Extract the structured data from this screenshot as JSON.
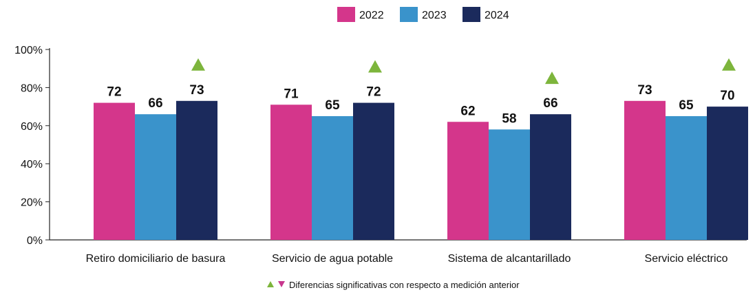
{
  "chart_data": {
    "type": "bar",
    "categories": [
      "Retiro domiciliario de basura",
      "Servicio de agua potable",
      "Sistema de alcantarillado",
      "Servicio eléctrico"
    ],
    "series": [
      {
        "name": "2022",
        "color": "#D4368B",
        "values": [
          72,
          71,
          62,
          73
        ]
      },
      {
        "name": "2023",
        "color": "#3A93CB",
        "values": [
          66,
          65,
          58,
          65
        ]
      },
      {
        "name": "2024",
        "color": "#1B2A5C",
        "values": [
          73,
          72,
          66,
          70
        ]
      }
    ],
    "y_ticks": [
      "0%",
      "20%",
      "40%",
      "60%",
      "80%",
      "100%"
    ],
    "ylim": [
      0,
      100
    ],
    "grid": false,
    "legend_position": "top-center",
    "significance_markers": [
      {
        "category_index": 0,
        "direction": "up"
      },
      {
        "category_index": 1,
        "direction": "up"
      },
      {
        "category_index": 2,
        "direction": "up"
      },
      {
        "category_index": 3,
        "direction": "up"
      }
    ],
    "marker_up_color": "#7DB53C",
    "marker_down_color": "#C8378E",
    "footnote": "Diferencias significativas con respecto a medición anterior"
  }
}
